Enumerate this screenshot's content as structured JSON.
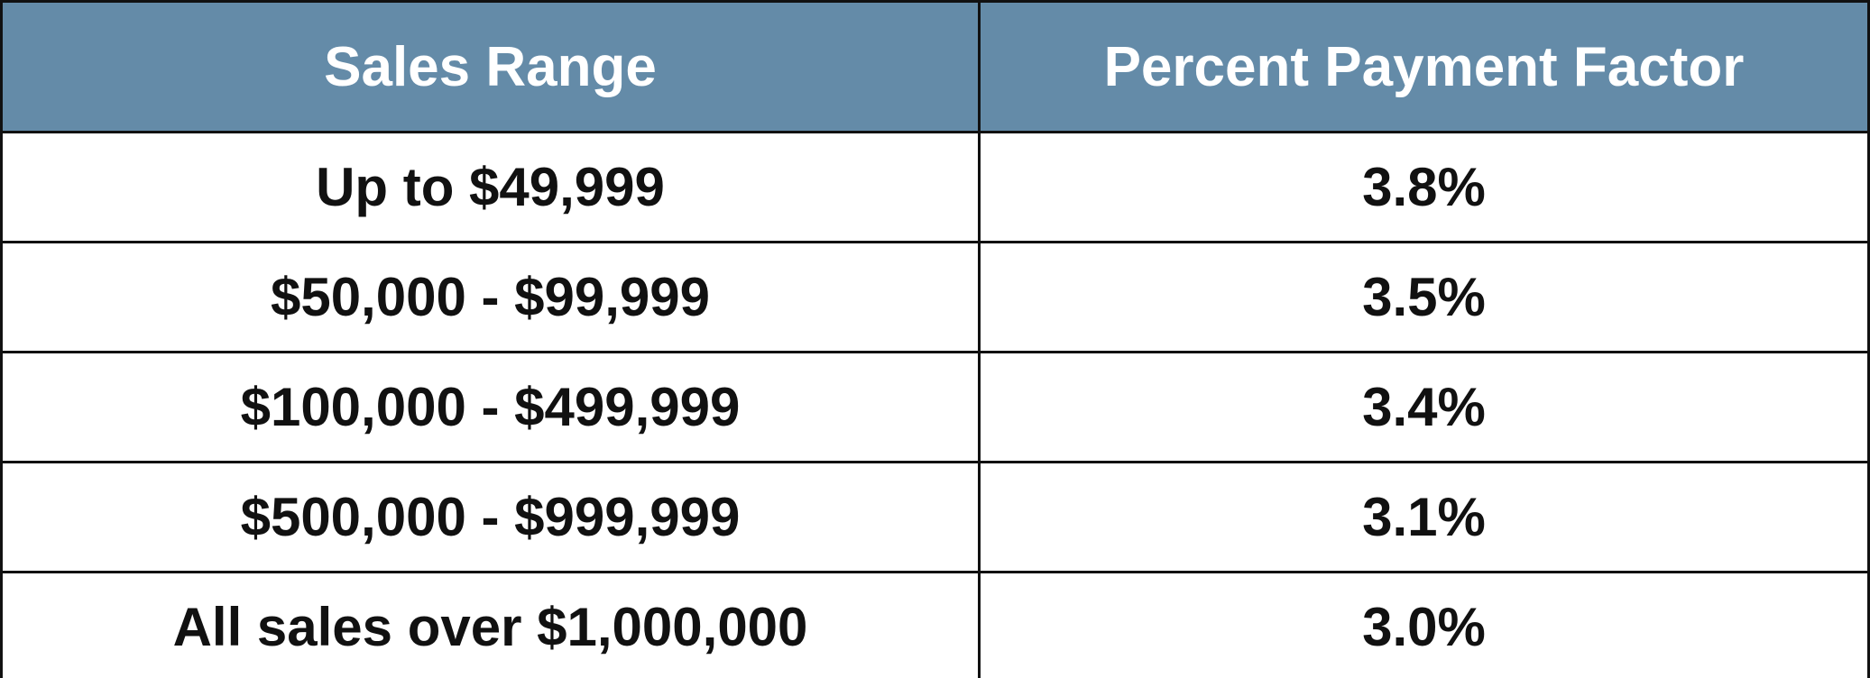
{
  "table": {
    "header": [
      "Sales Range",
      "Percent Payment Factor"
    ],
    "rows": [
      [
        "Up to $49,999",
        "3.8%"
      ],
      [
        "$50,000 - $99,999",
        "3.5%"
      ],
      [
        "$100,000 - $499,999",
        "3.4%"
      ],
      [
        "$500,000 - $999,999",
        "3.1%"
      ],
      [
        "All sales over $1,000,000",
        "3.0%"
      ]
    ]
  }
}
